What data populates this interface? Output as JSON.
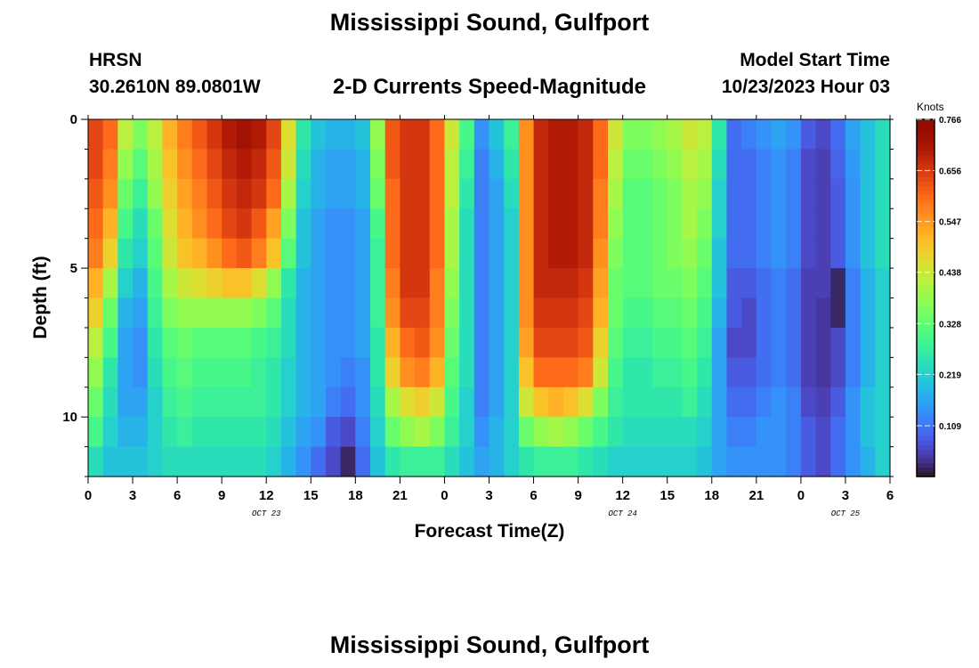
{
  "header": {
    "title": "Mississippi Sound, Gulfport",
    "station_code": "HRSN",
    "coordinates": "30.2610N  89.0801W",
    "subtitle": "2-D Currents Speed-Magnitude",
    "model_start_label": "Model Start Time",
    "model_start_value": "10/23/2023 Hour 03"
  },
  "footer": {
    "title_repeat": "Mississippi Sound, Gulfport"
  },
  "chart_data": {
    "type": "heatmap",
    "xlabel": "Forecast Time(Z)",
    "ylabel": "Depth (ft)",
    "x_ticks": [
      "0",
      "3",
      "6",
      "9",
      "12",
      "15",
      "18",
      "21",
      "0",
      "3",
      "6",
      "9",
      "12",
      "15",
      "18",
      "21",
      "0",
      "3",
      "6"
    ],
    "x_range_hours": [
      0,
      54
    ],
    "date_labels": [
      {
        "label": "OCT 23",
        "hour": 12
      },
      {
        "label": "OCT 24",
        "hour": 36
      },
      {
        "label": "OCT 25",
        "hour": 51
      }
    ],
    "y_ticks": [
      "0",
      "5",
      "10"
    ],
    "y_range_ft": [
      0,
      12
    ],
    "y_reversed": true,
    "colorbar": {
      "unit": "Knots",
      "ticks": [
        "0.766",
        "0.656",
        "0.547",
        "0.438",
        "0.328",
        "0.219",
        "0.109"
      ],
      "min": 0.0,
      "max": 0.766,
      "colormap": "turbo"
    },
    "grid": false,
    "speed_knots": {
      "hours": [
        0,
        1,
        2,
        3,
        4,
        5,
        6,
        7,
        8,
        9,
        10,
        11,
        12,
        13,
        14,
        15,
        16,
        17,
        18,
        19,
        20,
        21,
        22,
        23,
        24,
        25,
        26,
        27,
        28,
        29,
        30,
        31,
        32,
        33,
        34,
        35,
        36,
        37,
        38,
        39,
        40,
        41,
        42,
        43,
        44,
        45,
        46,
        47,
        48,
        49,
        50,
        51,
        52,
        53
      ],
      "depths_ft": [
        0,
        1,
        2,
        3,
        4,
        5,
        6,
        7,
        8,
        9,
        10,
        11
      ],
      "values": [
        [
          0.64,
          0.6,
          0.42,
          0.36,
          0.42,
          0.52,
          0.58,
          0.62,
          0.66,
          0.7,
          0.72,
          0.7,
          0.64,
          0.46,
          0.26,
          0.2,
          0.18,
          0.18,
          0.2,
          0.38,
          0.62,
          0.66,
          0.66,
          0.6,
          0.44,
          0.3,
          0.14,
          0.2,
          0.28,
          0.56,
          0.68,
          0.7,
          0.7,
          0.68,
          0.6,
          0.44,
          0.36,
          0.36,
          0.38,
          0.4,
          0.44,
          0.42,
          0.26,
          0.1,
          0.12,
          0.14,
          0.16,
          0.14,
          0.08,
          0.06,
          0.1,
          0.16,
          0.2,
          0.24
        ],
        [
          0.64,
          0.58,
          0.38,
          0.32,
          0.4,
          0.5,
          0.56,
          0.6,
          0.64,
          0.68,
          0.7,
          0.68,
          0.62,
          0.44,
          0.24,
          0.18,
          0.16,
          0.16,
          0.18,
          0.36,
          0.62,
          0.66,
          0.66,
          0.6,
          0.42,
          0.28,
          0.12,
          0.18,
          0.26,
          0.56,
          0.68,
          0.7,
          0.7,
          0.68,
          0.6,
          0.42,
          0.34,
          0.34,
          0.36,
          0.38,
          0.42,
          0.4,
          0.24,
          0.1,
          0.1,
          0.12,
          0.14,
          0.12,
          0.06,
          0.05,
          0.09,
          0.15,
          0.2,
          0.24
        ],
        [
          0.62,
          0.56,
          0.34,
          0.28,
          0.38,
          0.48,
          0.54,
          0.58,
          0.62,
          0.66,
          0.68,
          0.66,
          0.6,
          0.4,
          0.22,
          0.18,
          0.16,
          0.16,
          0.18,
          0.34,
          0.6,
          0.66,
          0.66,
          0.6,
          0.42,
          0.26,
          0.12,
          0.16,
          0.24,
          0.56,
          0.68,
          0.7,
          0.7,
          0.68,
          0.58,
          0.4,
          0.32,
          0.32,
          0.34,
          0.36,
          0.4,
          0.38,
          0.22,
          0.1,
          0.1,
          0.12,
          0.14,
          0.12,
          0.06,
          0.05,
          0.08,
          0.14,
          0.2,
          0.24
        ],
        [
          0.6,
          0.52,
          0.3,
          0.24,
          0.34,
          0.46,
          0.52,
          0.56,
          0.6,
          0.64,
          0.66,
          0.62,
          0.54,
          0.36,
          0.2,
          0.16,
          0.14,
          0.14,
          0.16,
          0.3,
          0.6,
          0.66,
          0.66,
          0.6,
          0.4,
          0.24,
          0.12,
          0.16,
          0.22,
          0.56,
          0.68,
          0.7,
          0.7,
          0.68,
          0.58,
          0.38,
          0.32,
          0.32,
          0.34,
          0.36,
          0.4,
          0.36,
          0.22,
          0.1,
          0.1,
          0.12,
          0.14,
          0.12,
          0.06,
          0.05,
          0.08,
          0.14,
          0.2,
          0.24
        ],
        [
          0.58,
          0.48,
          0.26,
          0.22,
          0.32,
          0.44,
          0.5,
          0.52,
          0.56,
          0.6,
          0.62,
          0.58,
          0.5,
          0.32,
          0.2,
          0.16,
          0.14,
          0.14,
          0.16,
          0.28,
          0.6,
          0.66,
          0.66,
          0.6,
          0.4,
          0.24,
          0.12,
          0.16,
          0.22,
          0.56,
          0.68,
          0.7,
          0.7,
          0.68,
          0.56,
          0.36,
          0.32,
          0.32,
          0.34,
          0.36,
          0.38,
          0.34,
          0.2,
          0.1,
          0.1,
          0.12,
          0.14,
          0.12,
          0.06,
          0.05,
          0.08,
          0.14,
          0.2,
          0.24
        ],
        [
          0.52,
          0.4,
          0.22,
          0.18,
          0.3,
          0.4,
          0.44,
          0.46,
          0.48,
          0.5,
          0.5,
          0.46,
          0.38,
          0.26,
          0.18,
          0.16,
          0.14,
          0.14,
          0.16,
          0.28,
          0.58,
          0.66,
          0.66,
          0.58,
          0.38,
          0.24,
          0.12,
          0.16,
          0.22,
          0.56,
          0.68,
          0.68,
          0.68,
          0.66,
          0.54,
          0.34,
          0.32,
          0.32,
          0.34,
          0.34,
          0.36,
          0.32,
          0.2,
          0.08,
          0.08,
          0.1,
          0.12,
          0.1,
          0.05,
          0.05,
          0.02,
          0.12,
          0.18,
          0.22
        ],
        [
          0.48,
          0.34,
          0.18,
          0.16,
          0.28,
          0.36,
          0.38,
          0.38,
          0.38,
          0.38,
          0.38,
          0.36,
          0.32,
          0.24,
          0.18,
          0.16,
          0.14,
          0.14,
          0.16,
          0.28,
          0.56,
          0.64,
          0.64,
          0.58,
          0.36,
          0.24,
          0.12,
          0.16,
          0.22,
          0.56,
          0.66,
          0.66,
          0.66,
          0.64,
          0.52,
          0.34,
          0.3,
          0.3,
          0.32,
          0.32,
          0.34,
          0.3,
          0.18,
          0.08,
          0.06,
          0.1,
          0.12,
          0.1,
          0.05,
          0.04,
          0.02,
          0.12,
          0.18,
          0.22
        ],
        [
          0.42,
          0.3,
          0.16,
          0.14,
          0.26,
          0.32,
          0.34,
          0.32,
          0.32,
          0.32,
          0.32,
          0.3,
          0.28,
          0.24,
          0.18,
          0.16,
          0.14,
          0.14,
          0.16,
          0.26,
          0.52,
          0.6,
          0.62,
          0.56,
          0.34,
          0.24,
          0.12,
          0.16,
          0.22,
          0.54,
          0.64,
          0.64,
          0.64,
          0.62,
          0.48,
          0.32,
          0.28,
          0.28,
          0.3,
          0.3,
          0.32,
          0.28,
          0.16,
          0.06,
          0.06,
          0.1,
          0.12,
          0.1,
          0.05,
          0.04,
          0.06,
          0.12,
          0.18,
          0.22
        ],
        [
          0.38,
          0.26,
          0.16,
          0.14,
          0.24,
          0.3,
          0.32,
          0.3,
          0.3,
          0.3,
          0.3,
          0.28,
          0.26,
          0.22,
          0.18,
          0.16,
          0.14,
          0.12,
          0.14,
          0.26,
          0.48,
          0.56,
          0.58,
          0.52,
          0.32,
          0.24,
          0.12,
          0.16,
          0.22,
          0.5,
          0.6,
          0.6,
          0.6,
          0.58,
          0.44,
          0.3,
          0.26,
          0.26,
          0.28,
          0.28,
          0.3,
          0.26,
          0.16,
          0.08,
          0.08,
          0.1,
          0.12,
          0.1,
          0.05,
          0.04,
          0.06,
          0.12,
          0.18,
          0.22
        ],
        [
          0.34,
          0.24,
          0.16,
          0.16,
          0.22,
          0.28,
          0.3,
          0.28,
          0.28,
          0.28,
          0.28,
          0.28,
          0.26,
          0.22,
          0.18,
          0.16,
          0.12,
          0.1,
          0.14,
          0.24,
          0.4,
          0.46,
          0.48,
          0.44,
          0.3,
          0.22,
          0.12,
          0.16,
          0.22,
          0.44,
          0.5,
          0.52,
          0.5,
          0.46,
          0.36,
          0.28,
          0.26,
          0.26,
          0.26,
          0.26,
          0.28,
          0.24,
          0.16,
          0.1,
          0.1,
          0.12,
          0.14,
          0.12,
          0.06,
          0.05,
          0.08,
          0.14,
          0.2,
          0.22
        ],
        [
          0.3,
          0.22,
          0.18,
          0.18,
          0.22,
          0.26,
          0.28,
          0.26,
          0.26,
          0.26,
          0.26,
          0.26,
          0.24,
          0.2,
          0.16,
          0.14,
          0.08,
          0.06,
          0.12,
          0.22,
          0.34,
          0.38,
          0.4,
          0.36,
          0.28,
          0.22,
          0.14,
          0.18,
          0.22,
          0.34,
          0.38,
          0.4,
          0.38,
          0.34,
          0.3,
          0.26,
          0.24,
          0.24,
          0.24,
          0.24,
          0.24,
          0.22,
          0.16,
          0.12,
          0.12,
          0.14,
          0.14,
          0.12,
          0.08,
          0.06,
          0.1,
          0.14,
          0.2,
          0.22
        ],
        [
          0.24,
          0.2,
          0.2,
          0.2,
          0.22,
          0.24,
          0.24,
          0.24,
          0.24,
          0.24,
          0.24,
          0.24,
          0.22,
          0.18,
          0.14,
          0.1,
          0.06,
          0.02,
          0.1,
          0.2,
          0.26,
          0.28,
          0.28,
          0.28,
          0.24,
          0.2,
          0.16,
          0.18,
          0.22,
          0.26,
          0.28,
          0.28,
          0.28,
          0.26,
          0.24,
          0.22,
          0.22,
          0.22,
          0.22,
          0.22,
          0.22,
          0.2,
          0.16,
          0.14,
          0.14,
          0.14,
          0.14,
          0.12,
          0.08,
          0.06,
          0.1,
          0.14,
          0.18,
          0.22
        ]
      ]
    }
  }
}
